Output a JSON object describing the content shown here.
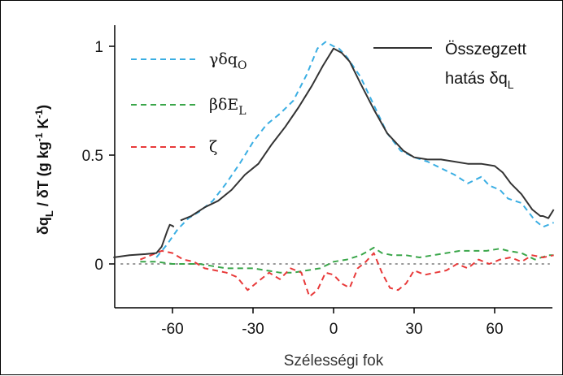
{
  "chart_data": {
    "type": "line",
    "xlabel": "Szélességi fok",
    "ylabel_parts": {
      "a": "δq",
      "a_sub": "L",
      "b": " / δT (g kg",
      "b_sup": "-1",
      "c": " K",
      "c_sup": "-1",
      "d": ")"
    },
    "xlim": [
      -85,
      85
    ],
    "ylim": [
      -0.18,
      1.12
    ],
    "x_ticks": [
      -60,
      -30,
      0,
      30,
      60
    ],
    "x_tick_labels": [
      "-60",
      "-30",
      "0",
      "30",
      "60"
    ],
    "y_ticks": [
      0,
      0.5,
      1
    ],
    "y_tick_labels": [
      "0",
      "0.5",
      "1"
    ],
    "grid": false,
    "zero_line": {
      "y": 0,
      "color": "#999999",
      "style": "dotted"
    },
    "legend_left": [
      {
        "series": "gamma",
        "text": "γδq",
        "sub": "O"
      },
      {
        "series": "beta",
        "text": "βδE",
        "sub": "L"
      },
      {
        "series": "zeta",
        "text": "ζ",
        "sub": ""
      }
    ],
    "legend_right": {
      "series": "total",
      "line1": "Összegzett",
      "line2": "hatás  δq",
      "sub": "L"
    },
    "series": [
      {
        "id": "total",
        "color": "#333333",
        "dash": "",
        "x": [
          -82,
          -76,
          -70,
          -66,
          -64,
          -62,
          -61,
          -60,
          -59.5,
          -57,
          -53,
          -48,
          -43,
          -38,
          -33,
          -28,
          -23,
          -18,
          -13,
          -8,
          -4,
          0,
          3,
          6,
          10,
          15,
          20,
          26,
          30,
          35,
          40,
          45,
          50,
          55,
          60,
          63,
          66,
          70,
          74,
          77,
          78,
          80,
          82
        ],
        "y": [
          0.03,
          0.04,
          0.045,
          0.05,
          0.08,
          0.15,
          0.18,
          0.175,
          0.17,
          0.2,
          0.22,
          0.26,
          0.29,
          0.34,
          0.41,
          0.46,
          0.55,
          0.63,
          0.72,
          0.82,
          0.91,
          0.99,
          0.97,
          0.93,
          0.83,
          0.71,
          0.6,
          0.52,
          0.49,
          0.48,
          0.48,
          0.47,
          0.46,
          0.46,
          0.45,
          0.42,
          0.37,
          0.32,
          0.25,
          0.22,
          0.22,
          0.21,
          0.25
        ]
      },
      {
        "id": "gamma",
        "color": "#3aaee3",
        "dash": "7,5",
        "x": [
          -66,
          -62,
          -58,
          -54,
          -50,
          -45,
          -40,
          -35,
          -30,
          -25,
          -20,
          -15,
          -10,
          -6,
          -3,
          0,
          2,
          5,
          10,
          15,
          20,
          25,
          30,
          35,
          40,
          45,
          50,
          55,
          58,
          62,
          65,
          70,
          75,
          78,
          80,
          82
        ],
        "y": [
          0.03,
          0.09,
          0.16,
          0.21,
          0.24,
          0.29,
          0.37,
          0.46,
          0.56,
          0.64,
          0.69,
          0.75,
          0.87,
          0.99,
          1.02,
          1.0,
          0.99,
          0.95,
          0.86,
          0.73,
          0.6,
          0.52,
          0.49,
          0.47,
          0.44,
          0.41,
          0.37,
          0.4,
          0.36,
          0.34,
          0.3,
          0.28,
          0.2,
          0.17,
          0.18,
          0.19
        ]
      },
      {
        "id": "beta",
        "color": "#3aa64a",
        "dash": "7,5",
        "x": [
          -72,
          -66,
          -60,
          -55,
          -50,
          -45,
          -40,
          -35,
          -30,
          -25,
          -20,
          -15,
          -10,
          -5,
          0,
          5,
          10,
          13,
          15,
          18,
          22,
          27,
          32,
          37,
          42,
          47,
          52,
          57,
          62,
          65,
          70,
          75,
          80,
          82
        ],
        "y": [
          0.01,
          0.01,
          0.0,
          0.0,
          0.0,
          -0.01,
          -0.02,
          -0.02,
          -0.02,
          -0.03,
          -0.04,
          -0.04,
          -0.03,
          -0.02,
          0.01,
          0.02,
          0.04,
          0.06,
          0.075,
          0.05,
          0.04,
          0.04,
          0.03,
          0.04,
          0.05,
          0.06,
          0.06,
          0.06,
          0.07,
          0.06,
          0.05,
          0.02,
          0.04,
          0.04
        ]
      },
      {
        "id": "zeta",
        "color": "#e83a3a",
        "dash": "7,5",
        "x": [
          -72,
          -68,
          -64,
          -60,
          -56,
          -52,
          -48,
          -44,
          -40,
          -36,
          -32,
          -28,
          -24,
          -20,
          -16,
          -12,
          -9,
          -6,
          -3,
          0,
          3,
          6,
          9,
          12,
          15,
          18,
          21,
          24,
          27,
          30,
          34,
          38,
          42,
          46,
          50,
          54,
          58,
          62,
          66,
          70,
          74,
          78,
          82
        ],
        "y": [
          0.02,
          0.04,
          0.06,
          0.05,
          0.02,
          0.01,
          -0.02,
          -0.03,
          -0.04,
          -0.06,
          -0.12,
          -0.08,
          -0.04,
          -0.07,
          -0.02,
          -0.04,
          -0.15,
          -0.12,
          -0.04,
          -0.05,
          -0.09,
          -0.11,
          -0.02,
          0.01,
          0.05,
          -0.04,
          -0.11,
          -0.12,
          -0.09,
          -0.03,
          -0.05,
          -0.04,
          -0.03,
          0.0,
          -0.02,
          0.02,
          0.0,
          0.02,
          0.03,
          0.01,
          0.04,
          0.03,
          0.04
        ]
      }
    ]
  }
}
